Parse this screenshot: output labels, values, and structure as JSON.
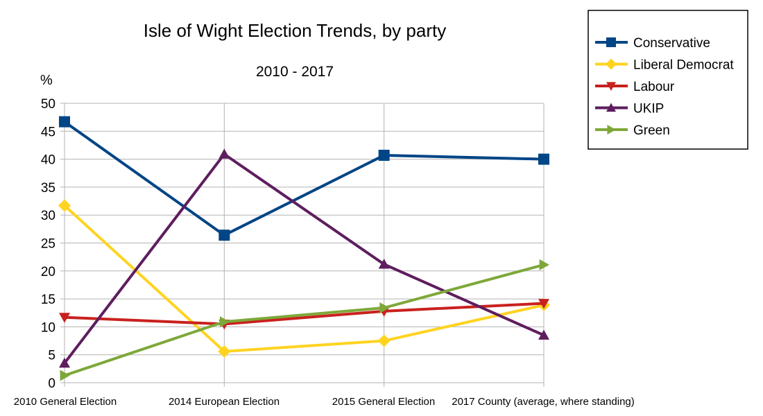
{
  "chart_data": {
    "type": "line",
    "title": "Isle of Wight Election Trends, by party",
    "subtitle": "2010 - 2017",
    "ylabel": "%",
    "xlabel": "",
    "ylim": [
      0,
      50
    ],
    "yticks": [
      0,
      5,
      10,
      15,
      20,
      25,
      30,
      35,
      40,
      45,
      50
    ],
    "grid": true,
    "legend_position": "top-right",
    "categories": [
      "2010 General Election",
      "2014 European Election",
      "2015 General Election",
      "2017 County (average, where standing)"
    ],
    "series": [
      {
        "name": "Conservative",
        "color": "#004586",
        "marker": "square",
        "values": [
          46.7,
          26.4,
          40.7,
          40.0
        ]
      },
      {
        "name": "Liberal Democrat",
        "color": "#ffd320",
        "marker": "diamond",
        "values": [
          31.7,
          5.6,
          7.5,
          13.9
        ]
      },
      {
        "name": "Labour",
        "color": "#c9211e",
        "marker": "triangle-down",
        "values": [
          11.7,
          10.5,
          12.8,
          14.2
        ]
      },
      {
        "name": "UKIP",
        "color": "#5e1d5e",
        "marker": "triangle-up",
        "values": [
          3.5,
          40.9,
          21.2,
          8.5
        ]
      },
      {
        "name": "Green",
        "color": "#7da839",
        "marker": "triangle-right",
        "values": [
          1.3,
          10.9,
          13.4,
          21.1
        ]
      }
    ]
  }
}
